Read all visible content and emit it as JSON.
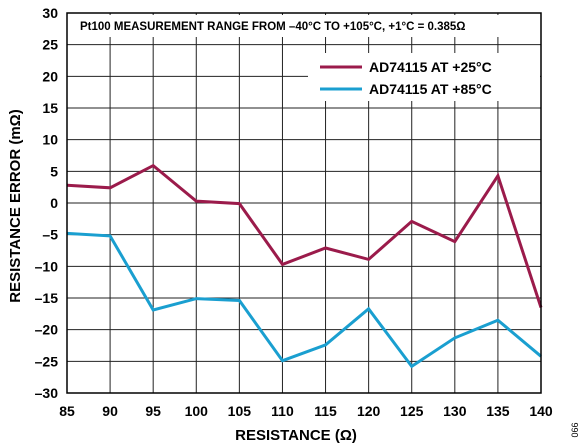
{
  "chart_data": {
    "type": "line",
    "title": "",
    "annotation": "Pt100 MEASUREMENT RANGE FROM –40°C TO +105°C, +1°C = 0.385Ω",
    "xlabel": "RESISTANCE (Ω)",
    "ylabel": "RESISTANCE ERROR (mΩ)",
    "xlim": [
      85,
      140
    ],
    "ylim": [
      -30,
      30
    ],
    "xticks": [
      "85",
      "90",
      "95",
      "100",
      "105",
      "110",
      "115",
      "120",
      "125",
      "130",
      "135",
      "140"
    ],
    "yticks": [
      "30",
      "25",
      "20",
      "15",
      "10",
      "5",
      "0",
      "–5",
      "–10",
      "–15",
      "–20",
      "–25",
      "–30"
    ],
    "grid": true,
    "legend_position": "top-right",
    "series": [
      {
        "name": "AD74115 AT +25°C",
        "color": "#9b1b4b",
        "x": [
          85,
          90,
          95,
          100,
          105,
          110,
          115,
          120,
          125,
          130,
          135,
          140
        ],
        "y": [
          2.8,
          2.4,
          5.9,
          0.3,
          -0.1,
          -9.7,
          -7.1,
          -8.9,
          -2.9,
          -6.1,
          4.3,
          -16.5
        ]
      },
      {
        "name": "AD74115 AT +85°C",
        "color": "#1a9fd0",
        "x": [
          85,
          90,
          95,
          100,
          105,
          110,
          115,
          120,
          125,
          130,
          135,
          140
        ],
        "y": [
          -4.8,
          -5.2,
          -16.9,
          -15.1,
          -15.4,
          -24.9,
          -22.4,
          -16.7,
          -25.8,
          -21.3,
          -18.5,
          -24.2
        ]
      }
    ],
    "side_label": "066"
  }
}
